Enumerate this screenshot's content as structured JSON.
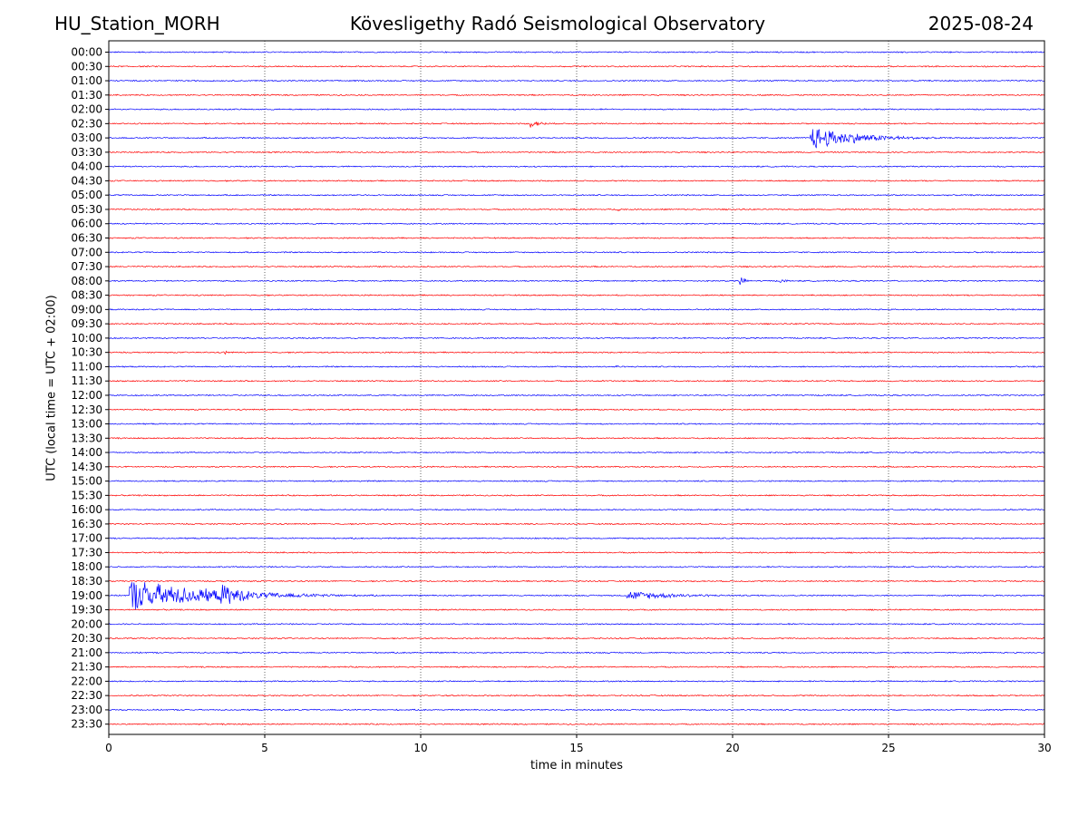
{
  "header": {
    "station": "HU_Station_MORH",
    "observatory": "Kövesligethy Radó Seismological Observatory",
    "date": "2025-08-24"
  },
  "chart_data": {
    "type": "line",
    "title": "Kövesligethy Radó Seismological Observatory",
    "xlabel": "time in minutes",
    "ylabel": "UTC (local time = UTC + 02:00)",
    "xlim": [
      0,
      30
    ],
    "x_ticks": [
      0,
      5,
      10,
      15,
      20,
      25,
      30
    ],
    "x_tick_labels": [
      "0",
      "5",
      "10",
      "15",
      "20",
      "25",
      "30"
    ],
    "grid": "vertical dotted lines at every 5 minutes",
    "row_labels": [
      "00:00",
      "00:30",
      "01:00",
      "01:30",
      "02:00",
      "02:30",
      "03:00",
      "03:30",
      "04:00",
      "04:30",
      "05:00",
      "05:30",
      "06:00",
      "06:30",
      "07:00",
      "07:30",
      "08:00",
      "08:30",
      "09:00",
      "09:30",
      "10:00",
      "10:30",
      "11:00",
      "11:30",
      "12:00",
      "12:30",
      "13:00",
      "13:30",
      "14:00",
      "14:30",
      "15:00",
      "15:30",
      "16:00",
      "16:30",
      "17:00",
      "17:30",
      "18:00",
      "18:30",
      "19:00",
      "19:30",
      "20:00",
      "20:30",
      "21:00",
      "21:30",
      "22:00",
      "22:30",
      "23:00",
      "23:30"
    ],
    "row_colors": [
      "#0000ff",
      "#ff0000"
    ],
    "events": [
      {
        "row": "02:30",
        "start_min": 13.5,
        "duration_min": 1.4,
        "amplitude": 0.45
      },
      {
        "row": "03:00",
        "start_min": 22.5,
        "duration_min": 4.8,
        "amplitude": 1.4
      },
      {
        "row": "05:30",
        "start_min": 16.3,
        "duration_min": 0.7,
        "amplitude": 0.25
      },
      {
        "row": "08:00",
        "start_min": 20.2,
        "duration_min": 0.5,
        "amplitude": 0.8
      },
      {
        "row": "08:00",
        "start_min": 21.5,
        "duration_min": 1.0,
        "amplitude": 0.25
      },
      {
        "row": "10:30",
        "start_min": 3.7,
        "duration_min": 0.5,
        "amplitude": 0.3
      },
      {
        "row": "11:00",
        "start_min": 16.2,
        "duration_min": 1.0,
        "amplitude": 0.2
      },
      {
        "row": "19:00",
        "start_min": 0.65,
        "duration_min": 8.0,
        "amplitude": 1.9
      },
      {
        "row": "19:00",
        "start_min": 3.6,
        "duration_min": 3.0,
        "amplitude": 1.3
      },
      {
        "row": "19:00",
        "start_min": 16.6,
        "duration_min": 5.5,
        "amplitude": 0.55
      }
    ]
  }
}
